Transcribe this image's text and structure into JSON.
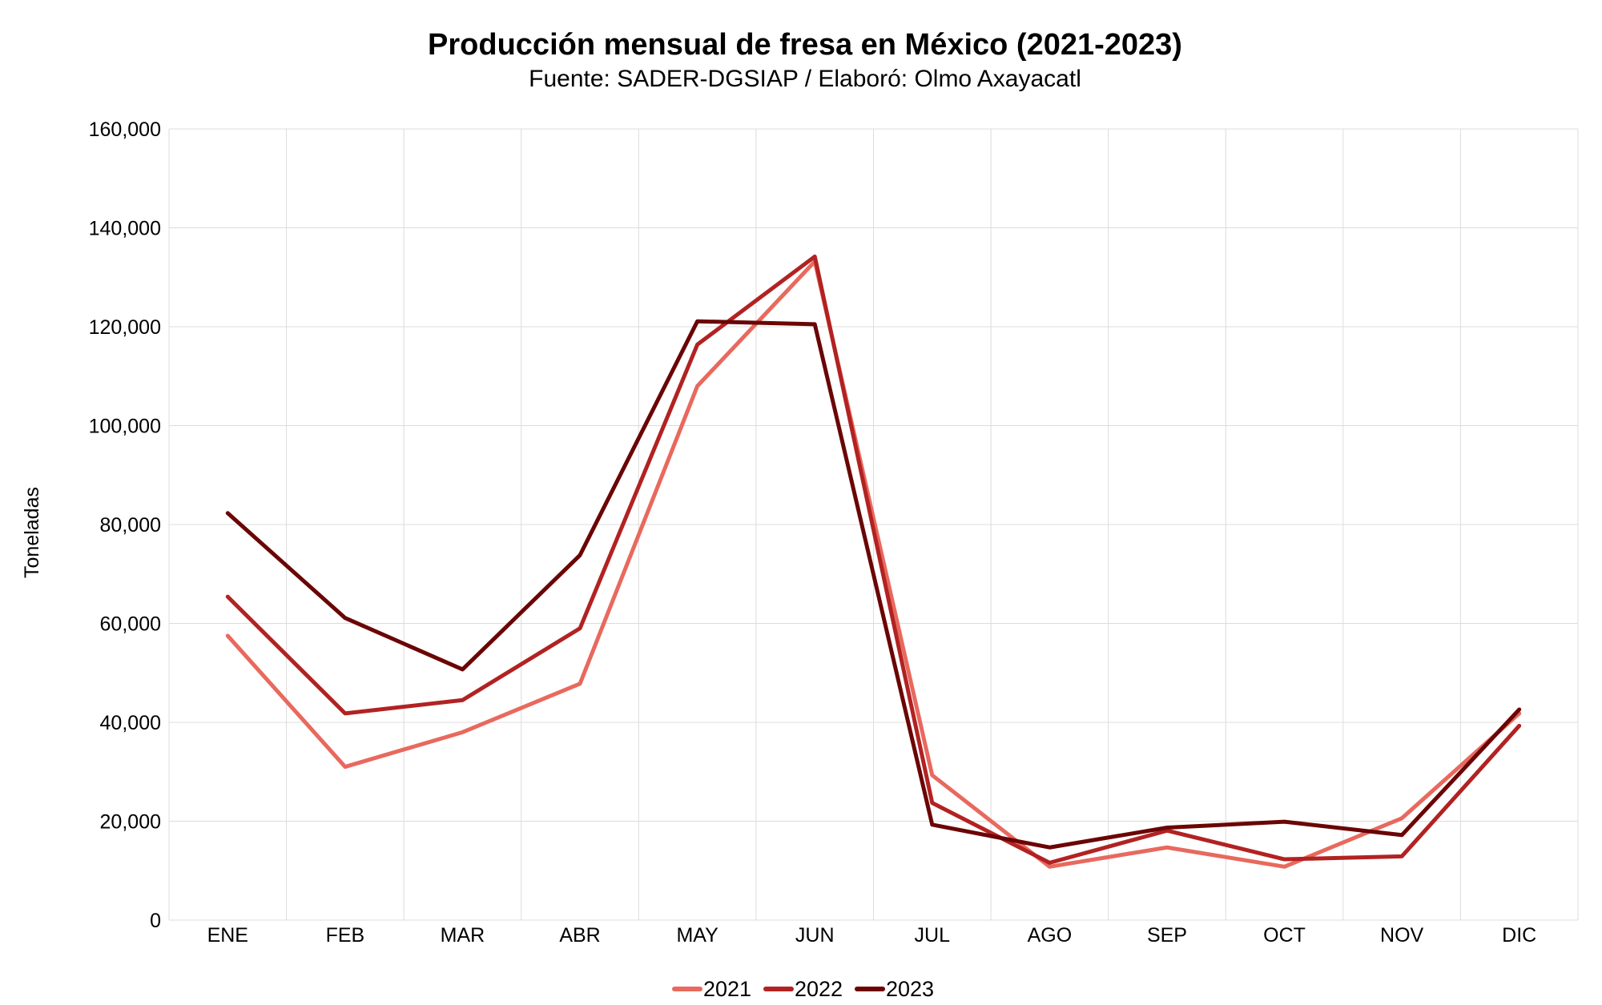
{
  "chart_data": {
    "type": "line",
    "title": "Producción mensual de fresa en México (2021-2023)",
    "subtitle": "Fuente: SADER-DGSIAP / Elaboró: Olmo Axayacatl",
    "xlabel": "",
    "ylabel": "Toneladas",
    "ylim": [
      0,
      160000
    ],
    "yticks": [
      0,
      20000,
      40000,
      60000,
      80000,
      100000,
      120000,
      140000,
      160000
    ],
    "grid": true,
    "legend_position": "bottom",
    "categories": [
      "ENE",
      "FEB",
      "MAR",
      "ABR",
      "MAY",
      "JUN",
      "JUL",
      "AGO",
      "SEP",
      "OCT",
      "NOV",
      "DIC"
    ],
    "series": [
      {
        "name": "2021",
        "color": "#e8695e",
        "values": [
          57500,
          31000,
          38000,
          47800,
          108000,
          133200,
          29300,
          10800,
          14700,
          10800,
          20600,
          41800
        ]
      },
      {
        "name": "2022",
        "color": "#b22222",
        "values": [
          65400,
          41800,
          44500,
          59000,
          116400,
          134200,
          23700,
          11600,
          18100,
          12300,
          12900,
          39300
        ]
      },
      {
        "name": "2023",
        "color": "#6b0505",
        "values": [
          82300,
          61100,
          50700,
          73800,
          121100,
          120500,
          19300,
          14700,
          18700,
          19900,
          17200,
          42600
        ]
      }
    ]
  }
}
